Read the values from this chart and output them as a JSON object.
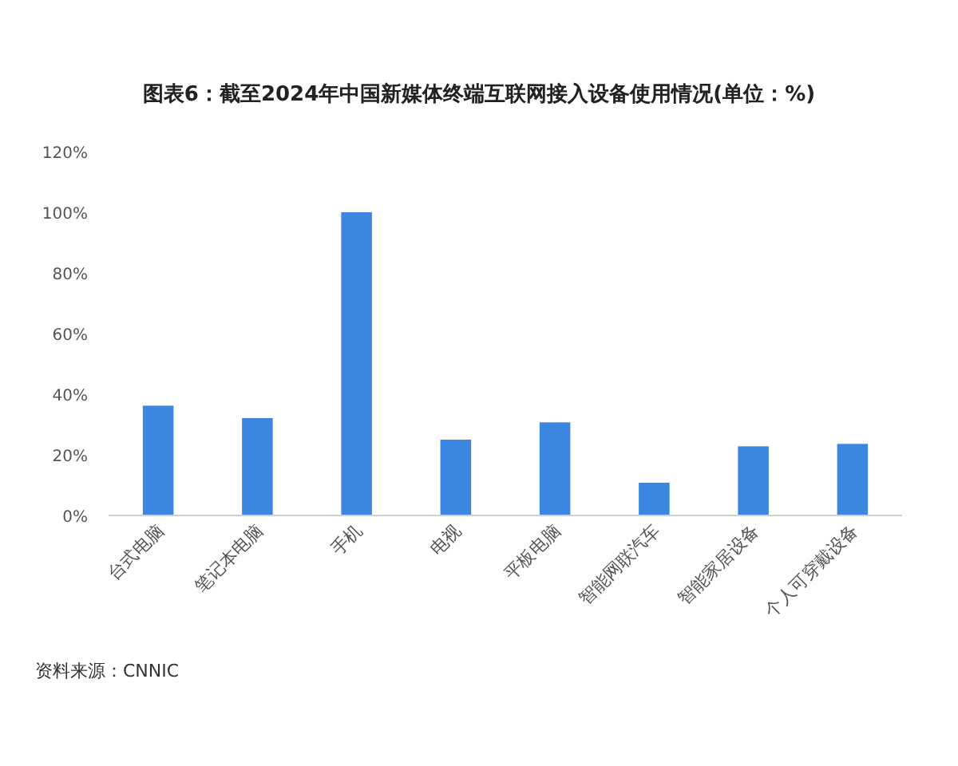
{
  "chart_data": {
    "type": "bar",
    "title": "图表6：截至2024年中国新媒体终端互联网接入设备使用情况(单位：%)",
    "categories": [
      "台式电脑",
      "笔记本电脑",
      "手机",
      "电视",
      "平板电脑",
      "智能网联汽车",
      "智能家居设备",
      "个人可穿戴设备"
    ],
    "values": [
      36.2,
      32.1,
      100,
      25.0,
      30.7,
      10.8,
      22.8,
      23.6
    ],
    "color": "#3a86e0",
    "ylim": [
      0,
      120
    ],
    "yticks": [
      {
        "value": 0,
        "label": "0%"
      },
      {
        "value": 20,
        "label": "20%"
      },
      {
        "value": 40,
        "label": "40%"
      },
      {
        "value": 60,
        "label": "60%"
      },
      {
        "value": 80,
        "label": "80%"
      },
      {
        "value": 100,
        "label": "100%"
      },
      {
        "value": 120,
        "label": "120%"
      }
    ],
    "grid": false,
    "annotations": [
      "资料来源：CNNIC"
    ]
  }
}
